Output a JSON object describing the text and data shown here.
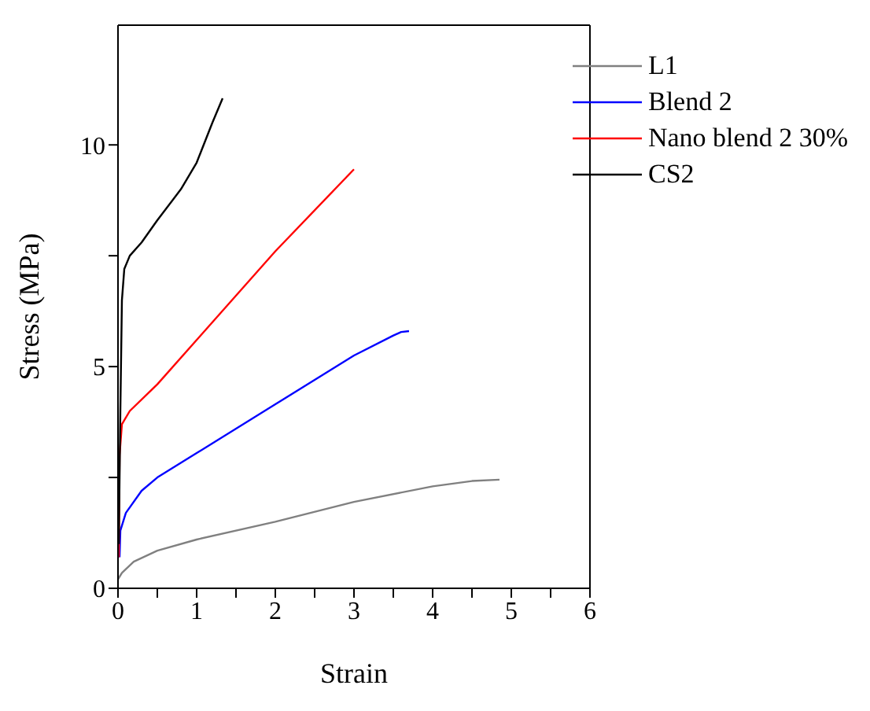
{
  "chart_data": {
    "type": "line",
    "xlabel": "Strain",
    "ylabel": "Stress (MPa)",
    "xlim": [
      0,
      6
    ],
    "ylim": [
      0,
      12.7
    ],
    "xticks": [
      0,
      {
        "value": 0.5,
        "label": null
      },
      1,
      {
        "value": 1.5,
        "label": null
      },
      2,
      {
        "value": 2.5,
        "label": null
      },
      3,
      {
        "value": 3.5,
        "label": null
      },
      4,
      {
        "value": 4.5,
        "label": null
      },
      5,
      {
        "value": 5.5,
        "label": null
      },
      6
    ],
    "yticks": [
      0,
      {
        "value": 2.5,
        "label": null
      },
      5,
      {
        "value": 7.5,
        "label": null
      },
      10
    ],
    "legend": "top right",
    "marker": "none",
    "line_style": "solid",
    "series": [
      {
        "name": "L1",
        "color": "#808080",
        "x": [
          0,
          0.05,
          0.2,
          0.5,
          1,
          2,
          3,
          4,
          4.5,
          4.85
        ],
        "values": [
          0.2,
          0.35,
          0.6,
          0.85,
          1.1,
          1.5,
          1.95,
          2.3,
          2.42,
          2.45
        ]
      },
      {
        "name": "Blend 2",
        "color": "#0000ff",
        "x": [
          0.02,
          0.03,
          0.1,
          0.3,
          0.5,
          1,
          2,
          3,
          3.5,
          3.6,
          3.7
        ],
        "values": [
          0.7,
          1.3,
          1.7,
          2.2,
          2.5,
          3.05,
          4.15,
          5.25,
          5.7,
          5.78,
          5.8
        ]
      },
      {
        "name": "Nano blend 2 30%",
        "color": "#ff0000",
        "x": [
          0.01,
          0.02,
          0.05,
          0.15,
          0.5,
          1,
          2,
          3
        ],
        "values": [
          0.7,
          3.0,
          3.7,
          4.0,
          4.6,
          5.6,
          7.6,
          9.45
        ]
      },
      {
        "name": "CS2",
        "color": "#000000",
        "x": [
          0.01,
          0.03,
          0.05,
          0.08,
          0.15,
          0.3,
          0.5,
          0.8,
          1,
          1.2,
          1.33
        ],
        "values": [
          1.0,
          4.0,
          6.5,
          7.2,
          7.5,
          7.8,
          8.3,
          9.0,
          9.6,
          10.5,
          11.05
        ]
      }
    ]
  }
}
